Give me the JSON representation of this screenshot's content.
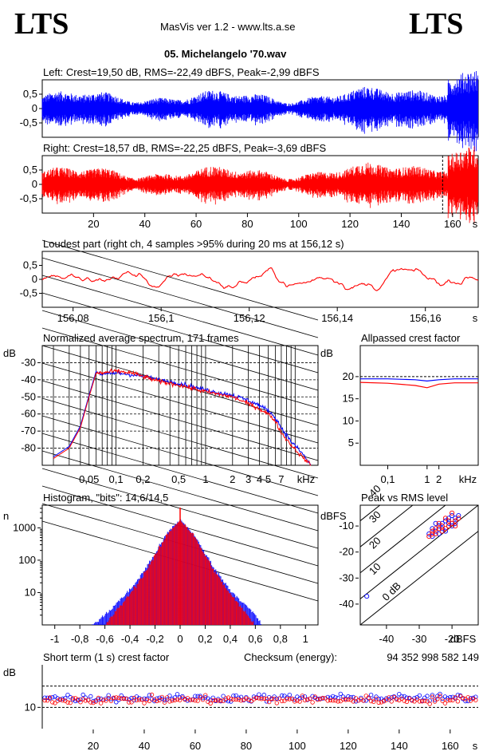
{
  "header": {
    "logo_left": "LTS",
    "logo_right": "LTS",
    "app_title": "MasVis ver 1.2 - www.lts.a.se",
    "file_name": "05. Michelangelo '70.wav"
  },
  "colors": {
    "left": "#0000ff",
    "right": "#ff0000",
    "grid": "#000000"
  },
  "chart_data": [
    {
      "id": "left_waveform",
      "type": "line",
      "title": "Left: Crest=19,50 dB, RMS=-22,49 dBFS, Peak=-2,99 dBFS",
      "series": [
        {
          "name": "Left",
          "color": "#0000ff"
        }
      ],
      "ylim": [
        -1,
        1
      ],
      "yticks": [
        "0,5",
        "0",
        "-0,5"
      ]
    },
    {
      "id": "right_waveform",
      "type": "line",
      "title": "Right: Crest=18,57 dB, RMS=-22,25 dBFS, Peak=-3,69 dBFS",
      "series": [
        {
          "name": "Right",
          "color": "#ff0000"
        }
      ],
      "ylim": [
        -1,
        1
      ],
      "yticks": [
        "0,5",
        "0",
        "-0,5"
      ],
      "xlim": [
        0,
        170
      ],
      "xticks": [
        "20",
        "40",
        "60",
        "80",
        "100",
        "120",
        "140",
        "160"
      ],
      "xunit": "s",
      "marker_at_s": 156.12
    },
    {
      "id": "loudest_part",
      "type": "line",
      "title": "Loudest part (right ch, 4 samples >95% during 20 ms at 156,12 s)",
      "series": [
        {
          "name": "Right",
          "color": "#ff0000"
        }
      ],
      "ylim": [
        -1,
        1
      ],
      "yticks": [
        "0,5",
        "0",
        "-0,5"
      ],
      "xlim": [
        156.073,
        156.172
      ],
      "xticks": [
        "156,08",
        "156,1",
        "156,12",
        "156,14",
        "156,16"
      ],
      "xunit": "s"
    },
    {
      "id": "spectrum",
      "type": "line",
      "title": "Normalized average spectrum, 171 frames",
      "ylabel": "dB",
      "yticks": [
        "-30",
        "-40",
        "-50",
        "-60",
        "-70",
        "-80"
      ],
      "ylim": [
        -90,
        -20
      ],
      "xscale": "log",
      "xunit": "kHz",
      "xticks": [
        "0,05",
        "0,1",
        "0,2",
        "0,5",
        "1",
        "2",
        "3",
        "4",
        "5",
        "7"
      ],
      "series": [
        {
          "name": "Left",
          "color": "#0000ff",
          "x": [
            0.02,
            0.03,
            0.04,
            0.05,
            0.06,
            0.07,
            0.1,
            0.15,
            0.2,
            0.3,
            0.5,
            1,
            2,
            3,
            4,
            5,
            6,
            7,
            9,
            12,
            15
          ],
          "y": [
            -85,
            -79,
            -67,
            -49,
            -35,
            -37,
            -36,
            -37,
            -38,
            -40,
            -42,
            -46,
            -49,
            -52,
            -55,
            -58,
            -62,
            -68,
            -76,
            -83,
            -90
          ]
        },
        {
          "name": "Right",
          "color": "#ff0000",
          "x": [
            0.02,
            0.03,
            0.04,
            0.05,
            0.06,
            0.07,
            0.1,
            0.15,
            0.2,
            0.3,
            0.5,
            1,
            2,
            3,
            4,
            5,
            6,
            7,
            9,
            12,
            15
          ],
          "y": [
            -86,
            -80,
            -68,
            -50,
            -36,
            -36,
            -35,
            -36,
            -38,
            -41,
            -43,
            -47,
            -50,
            -54,
            -57,
            -60,
            -64,
            -71,
            -78,
            -85,
            -90
          ]
        }
      ]
    },
    {
      "id": "allpassed_crest",
      "type": "line",
      "title": "Allpassed crest factor",
      "ylabel": "dB",
      "yticks": [
        "20",
        "15",
        "10",
        "5"
      ],
      "ylim": [
        0,
        27
      ],
      "xscale": "log",
      "xunit": "kHz",
      "xticks": [
        "0,1",
        "1",
        "2"
      ],
      "series": [
        {
          "name": "Left",
          "color": "#0000ff",
          "x": [
            0.02,
            0.1,
            0.5,
            1,
            2,
            5,
            20
          ],
          "y": [
            19.5,
            19.5,
            19.3,
            19.0,
            19.3,
            19.5,
            19.5
          ]
        },
        {
          "name": "Right",
          "color": "#ff0000",
          "x": [
            0.02,
            0.1,
            0.5,
            1,
            2,
            5,
            20
          ],
          "y": [
            18.7,
            18.5,
            18.0,
            17.5,
            18.3,
            18.6,
            18.6
          ]
        }
      ]
    },
    {
      "id": "histogram",
      "type": "line",
      "title": "Histogram, \"bits\": 14,6/14,5",
      "ylabel": "n",
      "yscale": "log",
      "yticks": [
        "1000",
        "100",
        "10"
      ],
      "xlim": [
        -1.1,
        1.1
      ],
      "xticks": [
        "-1",
        "-0,8",
        "-0,6",
        "-0,4",
        "-0,2",
        "0",
        "0,2",
        "0,4",
        "0,6",
        "0,8",
        "1"
      ],
      "series": [
        {
          "name": "Left",
          "color": "#0000ff",
          "x": [
            -0.7,
            -0.6,
            -0.5,
            -0.4,
            -0.3,
            -0.2,
            -0.1,
            0,
            0.1,
            0.2,
            0.3,
            0.4,
            0.5,
            0.6,
            0.65
          ],
          "y": [
            1,
            2,
            5,
            12,
            40,
            160,
            700,
            1800,
            700,
            160,
            40,
            12,
            5,
            2,
            1
          ]
        },
        {
          "name": "Right",
          "color": "#ff0000",
          "x": [
            -0.6,
            -0.5,
            -0.4,
            -0.3,
            -0.2,
            -0.1,
            0,
            0.1,
            0.2,
            0.3,
            0.4,
            0.5,
            0.6,
            0.63
          ],
          "y": [
            1,
            3,
            9,
            32,
            140,
            650,
            1800,
            650,
            140,
            32,
            9,
            3,
            1,
            1
          ]
        }
      ]
    },
    {
      "id": "peak_vs_rms",
      "type": "scatter",
      "title": "Peak vs RMS level",
      "ylabel": "dBFS",
      "xlabel": "dBFS",
      "yticks": [
        "-10",
        "-20",
        "-30",
        "-40"
      ],
      "xticks": [
        "-40",
        "-30",
        "-20"
      ],
      "xlim": [
        -48,
        -12
      ],
      "ylim": [
        -48,
        -2
      ],
      "crest_lines": [
        "40",
        "30",
        "20",
        "10",
        "0 dB"
      ],
      "series": [
        {
          "name": "Left",
          "color": "#0000ff",
          "points": [
            [
              -27,
              -13
            ],
            [
              -26,
              -11
            ],
            [
              -25,
              -12
            ],
            [
              -24,
              -10
            ],
            [
              -23,
              -9
            ],
            [
              -22,
              -8
            ],
            [
              -21,
              -7
            ],
            [
              -20,
              -6
            ],
            [
              -19,
              -7
            ],
            [
              -25,
              -9
            ],
            [
              -23,
              -11
            ],
            [
              -21,
              -9
            ],
            [
              -20,
              -10
            ],
            [
              -24,
              -13
            ],
            [
              -26,
              -14
            ],
            [
              -22,
              -12
            ],
            [
              -19,
              -9
            ],
            [
              -18,
              -6
            ],
            [
              -46,
              -37
            ]
          ]
        },
        {
          "name": "Right",
          "color": "#ff0000",
          "points": [
            [
              -27,
              -14
            ],
            [
              -26,
              -12
            ],
            [
              -25,
              -11
            ],
            [
              -24,
              -9
            ],
            [
              -23,
              -10
            ],
            [
              -22,
              -7
            ],
            [
              -21,
              -8
            ],
            [
              -20,
              -5
            ],
            [
              -19,
              -8
            ],
            [
              -25,
              -13
            ],
            [
              -23,
              -12
            ],
            [
              -21,
              -10
            ],
            [
              -20,
              -9
            ],
            [
              -24,
              -11
            ],
            [
              -26,
              -13
            ],
            [
              -22,
              -11
            ],
            [
              -19,
              -10
            ],
            [
              -18,
              -7
            ]
          ]
        }
      ]
    },
    {
      "id": "short_term_crest",
      "type": "scatter",
      "title": "Short term (1 s) crest factor",
      "checksum_label": "Checksum (energy):",
      "checksum_value": "94 352 998 582 149",
      "ylabel": "dB",
      "yticks": [
        "10"
      ],
      "ylim": [
        5,
        20
      ],
      "xlim": [
        0,
        171
      ],
      "xticks": [
        "20",
        "40",
        "60",
        "80",
        "100",
        "120",
        "140",
        "160"
      ],
      "xunit": "s",
      "series": [
        {
          "name": "Left",
          "color": "#0000ff",
          "mean": 12.2,
          "spread": 1.1
        },
        {
          "name": "Right",
          "color": "#ff0000",
          "mean": 11.8,
          "spread": 1.1
        }
      ]
    }
  ]
}
